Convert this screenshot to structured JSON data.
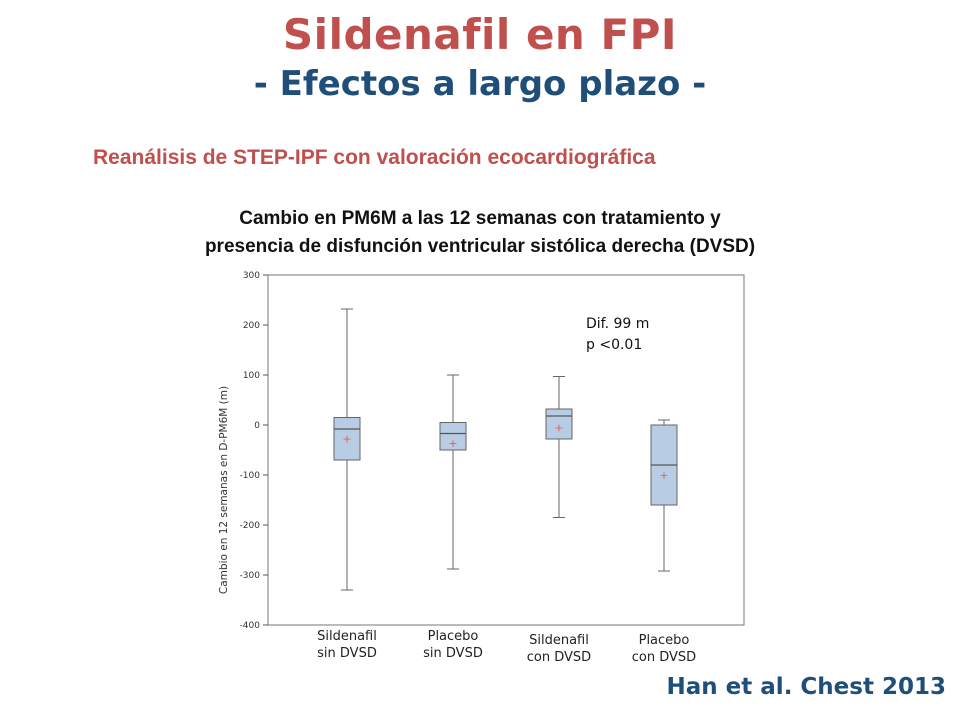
{
  "title": "Sildenafil en FPI",
  "subtitle": "- Efectos a largo plazo -",
  "heading": "Reanálisis de STEP-IPF con valoración ecocardiográfica",
  "chart_title_line1": "Cambio en PM6M a las 12 semanas con tratamiento y",
  "chart_title_line2": "presencia de disfunción ventricular sistólica derecha (DVSD)",
  "citation": "Han et al. Chest 2013",
  "colors": {
    "title": "#c0504d",
    "subtitle": "#1f4e79",
    "box_fill": "#b8cce4",
    "box_stroke": "#666666",
    "mean_marker": "#e06060"
  },
  "chart_data": {
    "type": "boxplot",
    "ylabel": "Cambio en 12 semanas en D-PM6M (m)",
    "ylim": [
      -400,
      300
    ],
    "yticks": [
      300,
      200,
      100,
      0,
      -100,
      -200,
      -300,
      -400
    ],
    "categories": [
      {
        "line1": "Sildenafil",
        "line2": "sin DVSD"
      },
      {
        "line1": "Placebo",
        "line2": "sin DVSD"
      },
      {
        "line1": "Sildenafil",
        "line2": "con DVSD"
      },
      {
        "line1": "Placebo",
        "line2": "con DVSD"
      }
    ],
    "boxes": [
      {
        "min": -330,
        "q1": -70,
        "median": -8,
        "q3": 15,
        "max": 232,
        "mean": -27
      },
      {
        "min": -288,
        "q1": -50,
        "median": -17,
        "q3": 5,
        "max": 100,
        "mean": -36
      },
      {
        "min": -185,
        "q1": -28,
        "median": 18,
        "q3": 32,
        "max": 97,
        "mean": -5
      },
      {
        "min": -292,
        "q1": -160,
        "median": -80,
        "q3": 0,
        "max": 10,
        "mean": -100
      }
    ],
    "annotation_line1": "Dif. 99 m",
    "annotation_line2": "p <0.01"
  }
}
